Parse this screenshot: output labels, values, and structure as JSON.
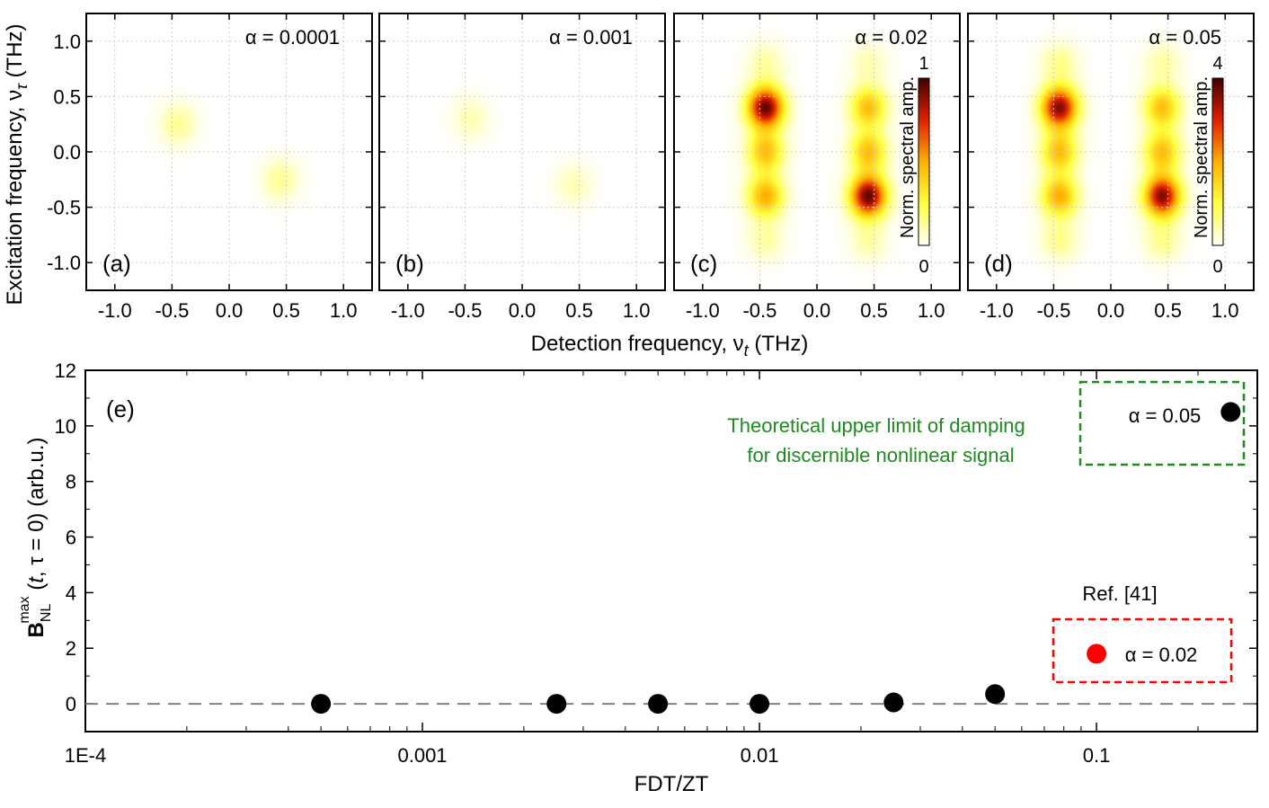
{
  "chart_data": [
    {
      "type": "heatmap",
      "panel": "(a)",
      "annotation": "α = 0.0001",
      "xticks": [
        "-1.0",
        "-0.5",
        "0.0",
        "0.5",
        "1.0"
      ],
      "yticks": [
        "1.0",
        "0.5",
        "0.0",
        "-0.5",
        "-1.0"
      ],
      "xlim": [
        -1.25,
        1.25
      ],
      "ylim": [
        -1.25,
        1.25
      ],
      "peaks": [
        {
          "x": -0.45,
          "y": 0.25,
          "amp": 0.14
        },
        {
          "x": 0.45,
          "y": -0.25,
          "amp": 0.14
        }
      ]
    },
    {
      "type": "heatmap",
      "panel": "(b)",
      "annotation": "α = 0.001",
      "xticks": [
        "-1.0",
        "-0.5",
        "0.0",
        "0.5",
        "1.0"
      ],
      "xlim": [
        -1.25,
        1.25
      ],
      "ylim": [
        -1.25,
        1.25
      ],
      "peaks": [
        {
          "x": -0.45,
          "y": 0.3,
          "amp": 0.1
        },
        {
          "x": 0.45,
          "y": -0.3,
          "amp": 0.1
        }
      ]
    },
    {
      "type": "heatmap",
      "panel": "(c)",
      "annotation": "α = 0.02",
      "xticks": [
        "-1.0",
        "-0.5",
        "0.0",
        "0.5",
        "1.0"
      ],
      "xlim": [
        -1.25,
        1.25
      ],
      "ylim": [
        -1.25,
        1.25
      ],
      "colorbar": {
        "label": "Norm. spectral amp.",
        "max": "1",
        "min": "0"
      },
      "peaks": [
        {
          "x": -0.45,
          "y": 0.8,
          "amp": 0.12
        },
        {
          "x": -0.45,
          "y": 0.4,
          "amp": 0.95
        },
        {
          "x": -0.45,
          "y": 0.0,
          "amp": 0.45
        },
        {
          "x": -0.45,
          "y": -0.4,
          "amp": 0.5
        },
        {
          "x": -0.45,
          "y": -0.8,
          "amp": 0.12
        },
        {
          "x": 0.45,
          "y": 0.8,
          "amp": 0.1
        },
        {
          "x": 0.45,
          "y": 0.4,
          "amp": 0.45
        },
        {
          "x": 0.45,
          "y": 0.0,
          "amp": 0.45
        },
        {
          "x": 0.45,
          "y": -0.4,
          "amp": 0.95
        },
        {
          "x": 0.45,
          "y": -0.8,
          "amp": 0.12
        }
      ]
    },
    {
      "type": "heatmap",
      "panel": "(d)",
      "annotation": "α = 0.05",
      "xticks": [
        "-1.0",
        "-0.5",
        "0.0",
        "0.5",
        "1.0"
      ],
      "xlim": [
        -1.25,
        1.25
      ],
      "ylim": [
        -1.25,
        1.25
      ],
      "colorbar": {
        "label": "Norm. spectral amp.",
        "max": "4",
        "min": "0"
      },
      "peaks": [
        {
          "x": -0.45,
          "y": 0.8,
          "amp": 0.15
        },
        {
          "x": -0.45,
          "y": 0.4,
          "amp": 0.9
        },
        {
          "x": -0.45,
          "y": 0.0,
          "amp": 0.45
        },
        {
          "x": -0.45,
          "y": -0.4,
          "amp": 0.5
        },
        {
          "x": -0.45,
          "y": -0.8,
          "amp": 0.15
        },
        {
          "x": 0.45,
          "y": 0.8,
          "amp": 0.12
        },
        {
          "x": 0.45,
          "y": 0.4,
          "amp": 0.45
        },
        {
          "x": 0.45,
          "y": 0.0,
          "amp": 0.45
        },
        {
          "x": 0.45,
          "y": -0.4,
          "amp": 0.9
        },
        {
          "x": 0.45,
          "y": -0.8,
          "amp": 0.15
        }
      ]
    },
    {
      "type": "scatter",
      "panel": "(e)",
      "xlabel": "FDT/ZT",
      "xscale": "log",
      "xlim": [
        0.0001,
        0.3
      ],
      "ylim": [
        -1,
        12
      ],
      "xticks": [
        "1E-4",
        "0.001",
        "0.01",
        "0.1"
      ],
      "yticks": [
        "0",
        "2",
        "4",
        "6",
        "8",
        "10",
        "12"
      ],
      "reference_line_y": 0,
      "points": [
        {
          "x": 0.0005,
          "y": 0.0
        },
        {
          "x": 0.0025,
          "y": 0.0
        },
        {
          "x": 0.005,
          "y": 0.0
        },
        {
          "x": 0.01,
          "y": 0.0
        },
        {
          "x": 0.025,
          "y": 0.05
        },
        {
          "x": 0.05,
          "y": 0.35
        },
        {
          "x": 0.25,
          "y": 10.5
        }
      ],
      "ref_point": {
        "x": 0.1,
        "y": 1.8,
        "color": "#ff0000"
      },
      "annotations": {
        "green_line1": "Theoretical upper limit of damping",
        "green_line2": "for discernible nonlinear signal",
        "alpha_high": "α = 0.05",
        "ref_label": "Ref. [41]",
        "alpha_ref": "α = 0.02"
      }
    }
  ],
  "axes_text": {
    "top_ylabel": "Excitation frequency, ν",
    "top_ylabel_sub": "τ",
    "top_ylabel_unit": " (THz)",
    "top_xlabel": "Detection frequency, ν",
    "top_xlabel_sub": "t",
    "top_xlabel_unit": " (THz)",
    "bottom_ylabel_main": "B",
    "bottom_ylabel_sub": "NL",
    "bottom_ylabel_sup": "max",
    "bottom_ylabel_rest": " (",
    "bottom_ylabel_t": "t",
    "bottom_ylabel_tail": ", τ = 0) (arb.u.)"
  },
  "colors": {
    "marker": "#000000",
    "ref_marker": "#ff0000",
    "green_box": "#1f8a1f",
    "red_box": "#ff0000",
    "dash_line": "#808080"
  }
}
